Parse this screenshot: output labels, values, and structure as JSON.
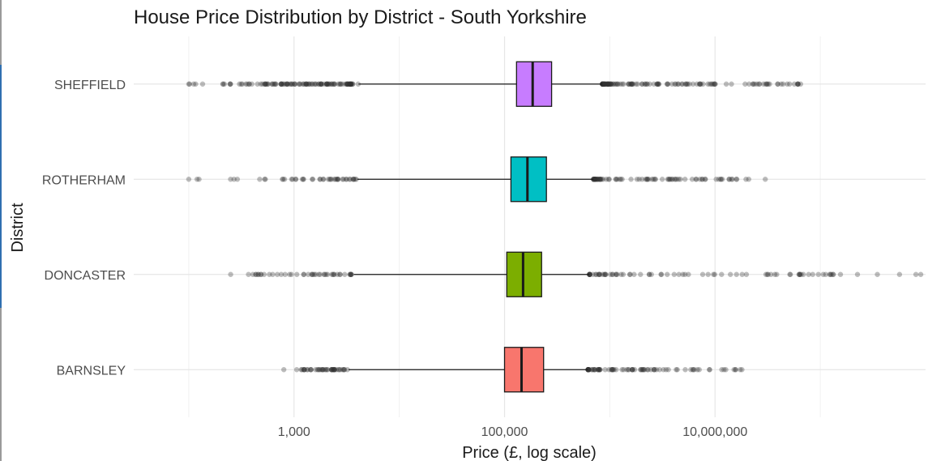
{
  "chart_data": {
    "type": "boxplot",
    "title": "House Price Distribution by District - South Yorkshire",
    "xlabel": "Price (£, log scale)",
    "ylabel": "District",
    "x_scale": "log10",
    "xlim": [
      30,
      1000000000
    ],
    "x_ticks": [
      {
        "value": 1000,
        "label": "1,000"
      },
      {
        "value": 100000,
        "label": "100,000"
      },
      {
        "value": 10000000,
        "label": "10,000,000"
      }
    ],
    "x_minor_ticks": [
      100,
      10000,
      1000000,
      100000000
    ],
    "grid": true,
    "legend": "none",
    "categories": [
      "SHEFFIELD",
      "ROTHERHAM",
      "DONCASTER",
      "BARNSLEY"
    ],
    "colors": {
      "SHEFFIELD": "#c77cff",
      "ROTHERHAM": "#00bfc4",
      "DONCASTER": "#7cae00",
      "BARNSLEY": "#f8766d"
    },
    "boxes": [
      {
        "district": "SHEFFIELD",
        "whisker_low": 4100,
        "q1": 130000,
        "median": 185000,
        "q3": 280000,
        "whisker_high": 850000,
        "outliers_low_range": [
          100,
          4100
        ],
        "outliers_high_range": [
          850000,
          65000000
        ]
      },
      {
        "district": "ROTHERHAM",
        "whisker_low": 4000,
        "q1": 115000,
        "median": 165000,
        "q3": 250000,
        "whisker_high": 700000,
        "outliers_low_range": [
          100,
          4000
        ],
        "outliers_high_range": [
          700000,
          30000000
        ]
      },
      {
        "district": "DONCASTER",
        "whisker_low": 3700,
        "q1": 105000,
        "median": 150000,
        "q3": 225000,
        "whisker_high": 640000,
        "outliers_low_range": [
          250,
          3700
        ],
        "outliers_high_range": [
          640000,
          900000000
        ]
      },
      {
        "district": "BARNSLEY",
        "whisker_low": 3300,
        "q1": 100000,
        "median": 145000,
        "q3": 235000,
        "whisker_high": 620000,
        "outliers_low_range": [
          800,
          3300
        ],
        "outliers_high_range": [
          620000,
          18000000
        ]
      }
    ]
  }
}
